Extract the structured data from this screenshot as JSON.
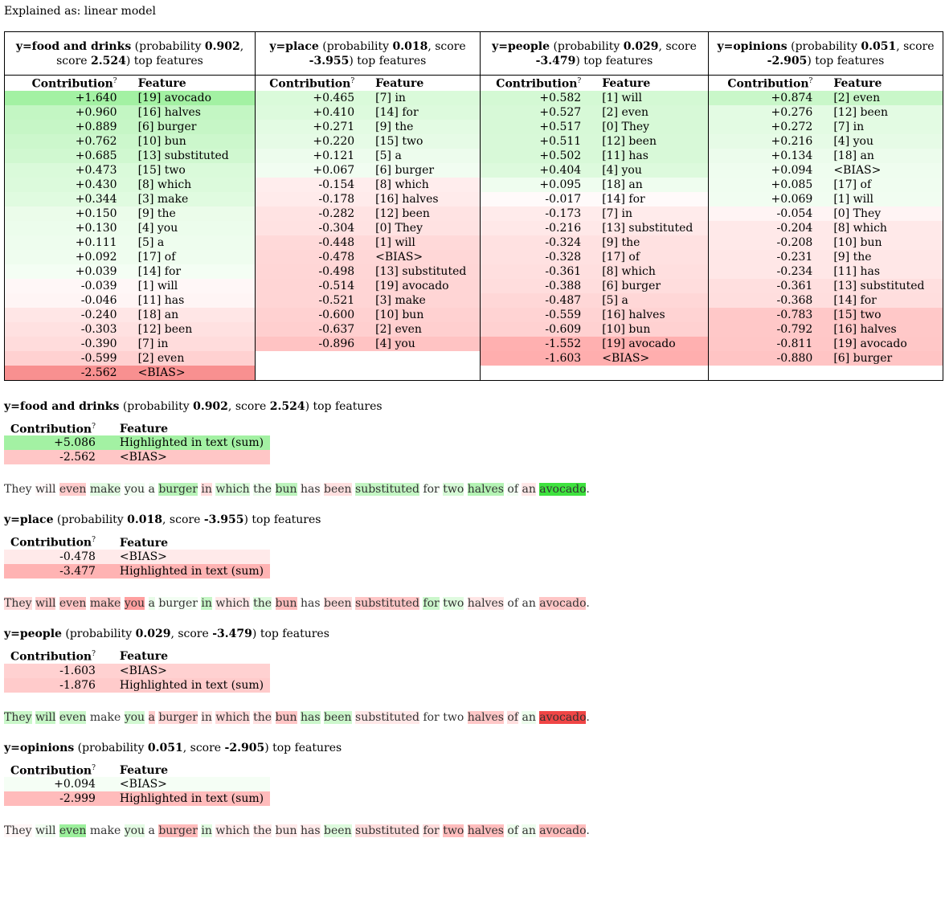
{
  "explained_as": "Explained as: linear model",
  "columns": [
    {
      "target": "y=food and drinks",
      "probability": "0.902",
      "score": "2.524",
      "header_width": "310",
      "rows": [
        {
          "c": "+1.640",
          "f": "[19] avocado",
          "bg": "#a3f1a3"
        },
        {
          "c": "+0.960",
          "f": "[16] halves",
          "bg": "#c3f6c3"
        },
        {
          "c": "+0.889",
          "f": "[6] burger",
          "bg": "#c6f6c6"
        },
        {
          "c": "+0.762",
          "f": "[10] bun",
          "bg": "#ccf7cc"
        },
        {
          "c": "+0.685",
          "f": "[13] substituted",
          "bg": "#d0f8d0"
        },
        {
          "c": "+0.473",
          "f": "[15] two",
          "bg": "#dafada"
        },
        {
          "c": "+0.430",
          "f": "[8] which",
          "bg": "#dcfadc"
        },
        {
          "c": "+0.344",
          "f": "[3] make",
          "bg": "#e0fbe0"
        },
        {
          "c": "+0.150",
          "f": "[9] the",
          "bg": "#ebfcea"
        },
        {
          "c": "+0.130",
          "f": "[4] you",
          "bg": "#ecfdec"
        },
        {
          "c": "+0.111",
          "f": "[5] a",
          "bg": "#eefdee"
        },
        {
          "c": "+0.092",
          "f": "[17] of",
          "bg": "#effdef"
        },
        {
          "c": "+0.039",
          "f": "[14] for",
          "bg": "#f4fef4"
        },
        {
          "c": "-0.039",
          "f": "[1] will",
          "bg": "#fff7f7"
        },
        {
          "c": "-0.046",
          "f": "[11] has",
          "bg": "#fff5f5"
        },
        {
          "c": "-0.240",
          "f": "[18] an",
          "bg": "#ffe6e6"
        },
        {
          "c": "-0.303",
          "f": "[12] been",
          "bg": "#ffe1e1"
        },
        {
          "c": "-0.390",
          "f": "[7] in",
          "bg": "#ffdcdc"
        },
        {
          "c": "-0.599",
          "f": "[2] even",
          "bg": "#ffd1d1"
        },
        {
          "c": "-2.562",
          "f": "<BIAS>",
          "bg": "#f89090"
        }
      ]
    },
    {
      "target": "y=place",
      "probability": "0.018",
      "score": "-3.955",
      "rows": [
        {
          "c": "+0.465",
          "f": "[7] in",
          "bg": "#dafada"
        },
        {
          "c": "+0.410",
          "f": "[14] for",
          "bg": "#ddfadd"
        },
        {
          "c": "+0.271",
          "f": "[9] the",
          "bg": "#e3fbe3"
        },
        {
          "c": "+0.220",
          "f": "[15] two",
          "bg": "#e6fbe6"
        },
        {
          "c": "+0.121",
          "f": "[5] a",
          "bg": "#edfced"
        },
        {
          "c": "+0.067",
          "f": "[6] burger",
          "bg": "#f1fdf1"
        },
        {
          "c": "-0.154",
          "f": "[8] which",
          "bg": "#ffeded"
        },
        {
          "c": "-0.178",
          "f": "[16] halves",
          "bg": "#ffebeb"
        },
        {
          "c": "-0.282",
          "f": "[12] been",
          "bg": "#ffe3e3"
        },
        {
          "c": "-0.304",
          "f": "[0] They",
          "bg": "#ffe2e2"
        },
        {
          "c": "-0.448",
          "f": "[1] will",
          "bg": "#ffd9d9"
        },
        {
          "c": "-0.478",
          "f": "<BIAS>",
          "bg": "#ffd7d7"
        },
        {
          "c": "-0.498",
          "f": "[13] substituted",
          "bg": "#ffd6d6"
        },
        {
          "c": "-0.514",
          "f": "[19] avocado",
          "bg": "#ffd5d5"
        },
        {
          "c": "-0.521",
          "f": "[3] make",
          "bg": "#ffd5d5"
        },
        {
          "c": "-0.600",
          "f": "[10] bun",
          "bg": "#ffd1d1"
        },
        {
          "c": "-0.637",
          "f": "[2] even",
          "bg": "#ffcfcf"
        },
        {
          "c": "-0.896",
          "f": "[4] you",
          "bg": "#ffc3c3"
        }
      ]
    },
    {
      "target": "y=people",
      "probability": "0.029",
      "score": "-3.479",
      "rows": [
        {
          "c": "+0.582",
          "f": "[1] will",
          "bg": "#d4f9d4"
        },
        {
          "c": "+0.527",
          "f": "[2] even",
          "bg": "#d7f9d7"
        },
        {
          "c": "+0.517",
          "f": "[0] They",
          "bg": "#d7f9d7"
        },
        {
          "c": "+0.511",
          "f": "[12] been",
          "bg": "#d8f9d8"
        },
        {
          "c": "+0.502",
          "f": "[11] has",
          "bg": "#d8f9d8"
        },
        {
          "c": "+0.404",
          "f": "[4] you",
          "bg": "#ddfadd"
        },
        {
          "c": "+0.095",
          "f": "[18] an",
          "bg": "#effdef"
        },
        {
          "c": "-0.017",
          "f": "[14] for",
          "bg": "#fffafa"
        },
        {
          "c": "-0.173",
          "f": "[7] in",
          "bg": "#ffebeb"
        },
        {
          "c": "-0.216",
          "f": "[13] substituted",
          "bg": "#ffe8e8"
        },
        {
          "c": "-0.324",
          "f": "[9] the",
          "bg": "#ffe1e1"
        },
        {
          "c": "-0.328",
          "f": "[17] of",
          "bg": "#ffe1e1"
        },
        {
          "c": "-0.361",
          "f": "[8] which",
          "bg": "#ffdfdf"
        },
        {
          "c": "-0.388",
          "f": "[6] burger",
          "bg": "#ffdddd"
        },
        {
          "c": "-0.487",
          "f": "[5] a",
          "bg": "#ffd7d7"
        },
        {
          "c": "-0.559",
          "f": "[16] halves",
          "bg": "#ffd3d3"
        },
        {
          "c": "-0.609",
          "f": "[10] bun",
          "bg": "#ffd1d1"
        },
        {
          "c": "-1.552",
          "f": "[19] avocado",
          "bg": "#ffb0b0"
        },
        {
          "c": "-1.603",
          "f": "<BIAS>",
          "bg": "#ffaeae"
        }
      ]
    },
    {
      "target": "y=opinions",
      "probability": "0.051",
      "score": "-2.905",
      "rows": [
        {
          "c": "+0.874",
          "f": "[2] even",
          "bg": "#c9f7c9"
        },
        {
          "c": "+0.276",
          "f": "[12] been",
          "bg": "#e3fbe3"
        },
        {
          "c": "+0.272",
          "f": "[7] in",
          "bg": "#e3fbe3"
        },
        {
          "c": "+0.216",
          "f": "[4] you",
          "bg": "#e6fbe6"
        },
        {
          "c": "+0.134",
          "f": "[18] an",
          "bg": "#ecfcec"
        },
        {
          "c": "+0.094",
          "f": "<BIAS>",
          "bg": "#effdef"
        },
        {
          "c": "+0.085",
          "f": "[17] of",
          "bg": "#f0fdf0"
        },
        {
          "c": "+0.069",
          "f": "[1] will",
          "bg": "#f1fdf1"
        },
        {
          "c": "-0.054",
          "f": "[0] They",
          "bg": "#fff4f4"
        },
        {
          "c": "-0.204",
          "f": "[8] which",
          "bg": "#ffe9e9"
        },
        {
          "c": "-0.208",
          "f": "[10] bun",
          "bg": "#ffe9e9"
        },
        {
          "c": "-0.231",
          "f": "[9] the",
          "bg": "#ffe7e7"
        },
        {
          "c": "-0.234",
          "f": "[11] has",
          "bg": "#ffe7e7"
        },
        {
          "c": "-0.361",
          "f": "[13] substituted",
          "bg": "#ffdfdf"
        },
        {
          "c": "-0.368",
          "f": "[14] for",
          "bg": "#ffdede"
        },
        {
          "c": "-0.783",
          "f": "[15] two",
          "bg": "#ffc8c8"
        },
        {
          "c": "-0.792",
          "f": "[16] halves",
          "bg": "#ffc8c8"
        },
        {
          "c": "-0.811",
          "f": "[19] avocado",
          "bg": "#ffc7c7"
        },
        {
          "c": "-0.880",
          "f": "[6] burger",
          "bg": "#ffc4c4"
        }
      ]
    }
  ],
  "labels": {
    "probability": "probability",
    "score": "score",
    "top_features": "top features",
    "contribution": "Contribution",
    "contribution_sup": "?",
    "feature": "Feature"
  },
  "sections": [
    {
      "target": "y=food and drinks",
      "probability": "0.902",
      "score": "2.524",
      "rows": [
        {
          "c": "+5.086",
          "f": "Highlighted in text (sum)",
          "bg": "#a3f1a3"
        },
        {
          "c": "-2.562",
          "f": "<BIAS>",
          "bg": "#ffc6c6"
        }
      ],
      "tokens": [
        {
          "t": "They",
          "bg": ""
        },
        {
          "t": "will",
          "bg": "#fff7f7"
        },
        {
          "t": "even",
          "bg": "#ffcccc"
        },
        {
          "t": "make",
          "bg": "#e2fbe2"
        },
        {
          "t": "you",
          "bg": "#f1fdf1"
        },
        {
          "t": "a",
          "bg": "#f3fef3"
        },
        {
          "t": "burger",
          "bg": "#b8f3b8"
        },
        {
          "t": "in",
          "bg": "#ffdcdc"
        },
        {
          "t": "which",
          "bg": "#d8f9d8"
        },
        {
          "t": "the",
          "bg": "#ecfcec"
        },
        {
          "t": "bun",
          "bg": "#bdf4bd"
        },
        {
          "t": "has",
          "bg": "#fff6f6"
        },
        {
          "t": "been",
          "bg": "#ffe0e0"
        },
        {
          "t": "substituted",
          "bg": "#c4f6c4"
        },
        {
          "t": "for",
          "bg": "#f6fef6"
        },
        {
          "t": "two",
          "bg": "#d6f9d6"
        },
        {
          "t": "halves",
          "bg": "#b4f3b4"
        },
        {
          "t": "of",
          "bg": "#f1fdf1"
        },
        {
          "t": "an",
          "bg": "#ffe8e8"
        },
        {
          "t": "avocado",
          "bg": "#3fe23f"
        }
      ],
      "end": "."
    },
    {
      "target": "y=place",
      "probability": "0.018",
      "score": "-3.955",
      "rows": [
        {
          "c": "-0.478",
          "f": "<BIAS>",
          "bg": "#ffeaea"
        },
        {
          "c": "-3.477",
          "f": "Highlighted in text (sum)",
          "bg": "#ffb3b3"
        }
      ],
      "tokens": [
        {
          "t": "They",
          "bg": "#ffd9d9"
        },
        {
          "t": "will",
          "bg": "#ffcdcd"
        },
        {
          "t": "even",
          "bg": "#ffc4c4"
        },
        {
          "t": "make",
          "bg": "#ffc8c8"
        },
        {
          "t": "you",
          "bg": "#ff9f9f"
        },
        {
          "t": "a",
          "bg": "#e8fbe8"
        },
        {
          "t": "burger",
          "bg": "#f3fef3"
        },
        {
          "t": "in",
          "bg": "#c6f6c6"
        },
        {
          "t": "which",
          "bg": "#ffe7e7"
        },
        {
          "t": "the",
          "bg": "#dcfadc"
        },
        {
          "t": "bun",
          "bg": "#ffbdbd"
        },
        {
          "t": "has",
          "bg": ""
        },
        {
          "t": "been",
          "bg": "#ffdcdc"
        },
        {
          "t": "substituted",
          "bg": "#ffc7c7"
        },
        {
          "t": "for",
          "bg": "#cbf7cb"
        },
        {
          "t": "two",
          "bg": "#e0fbe0"
        },
        {
          "t": "halves",
          "bg": "#ffe5e5"
        },
        {
          "t": "of",
          "bg": ""
        },
        {
          "t": "an",
          "bg": ""
        },
        {
          "t": "avocado",
          "bg": "#ffc6c6"
        }
      ],
      "end": "."
    },
    {
      "target": "y=people",
      "probability": "0.029",
      "score": "-3.479",
      "rows": [
        {
          "c": "-1.603",
          "f": "<BIAS>",
          "bg": "#ffd1d1"
        },
        {
          "c": "-1.876",
          "f": "Highlighted in text (sum)",
          "bg": "#ffcbcb"
        }
      ],
      "tokens": [
        {
          "t": "They",
          "bg": "#c9f7c9"
        },
        {
          "t": "will",
          "bg": "#c6f6c6"
        },
        {
          "t": "even",
          "bg": "#cbf7cb"
        },
        {
          "t": "make",
          "bg": ""
        },
        {
          "t": "you",
          "bg": "#d2f8d2"
        },
        {
          "t": "a",
          "bg": "#ffcccc"
        },
        {
          "t": "burger",
          "bg": "#ffd6d6"
        },
        {
          "t": "in",
          "bg": "#ffe6e6"
        },
        {
          "t": "which",
          "bg": "#ffd9d9"
        },
        {
          "t": "the",
          "bg": "#ffe0e0"
        },
        {
          "t": "bun",
          "bg": "#ffc6c6"
        },
        {
          "t": "has",
          "bg": "#ccf7cc"
        },
        {
          "t": "been",
          "bg": "#ccf7cc"
        },
        {
          "t": "substituted",
          "bg": "#ffe8e8"
        },
        {
          "t": "for",
          "bg": ""
        },
        {
          "t": "two",
          "bg": ""
        },
        {
          "t": "halves",
          "bg": "#ffc8c8"
        },
        {
          "t": "of",
          "bg": "#ffdede"
        },
        {
          "t": "an",
          "bg": "#ecfcec"
        },
        {
          "t": "avocado",
          "bg": "#f04646"
        }
      ],
      "end": "."
    },
    {
      "target": "y=opinions",
      "probability": "0.051",
      "score": "-2.905",
      "rows": [
        {
          "c": "+0.094",
          "f": "<BIAS>",
          "bg": "#f5fef5"
        },
        {
          "c": "-2.999",
          "f": "Highlighted in text (sum)",
          "bg": "#ffbbbb"
        }
      ],
      "tokens": [
        {
          "t": "They",
          "bg": "#fff6f6"
        },
        {
          "t": "will",
          "bg": "#f1fdf1"
        },
        {
          "t": "even",
          "bg": "#9cf09c"
        },
        {
          "t": "make",
          "bg": ""
        },
        {
          "t": "you",
          "bg": "#e3fbe3"
        },
        {
          "t": "a",
          "bg": ""
        },
        {
          "t": "burger",
          "bg": "#ffbbbb"
        },
        {
          "t": "in",
          "bg": "#dffadf"
        },
        {
          "t": "which",
          "bg": "#ffeaea"
        },
        {
          "t": "the",
          "bg": "#ffeaea"
        },
        {
          "t": "bun",
          "bg": "#ffeaea"
        },
        {
          "t": "has",
          "bg": "#ffeaea"
        },
        {
          "t": "been",
          "bg": "#ddfadd"
        },
        {
          "t": "substituted",
          "bg": "#ffdddd"
        },
        {
          "t": "for",
          "bg": "#ffdddd"
        },
        {
          "t": "two",
          "bg": "#ffbdbd"
        },
        {
          "t": "halves",
          "bg": "#ffbdbd"
        },
        {
          "t": "of",
          "bg": "#ecfcec"
        },
        {
          "t": "an",
          "bg": "#eefdee"
        },
        {
          "t": "avocado",
          "bg": "#ffbdbd"
        }
      ],
      "end": "."
    }
  ]
}
